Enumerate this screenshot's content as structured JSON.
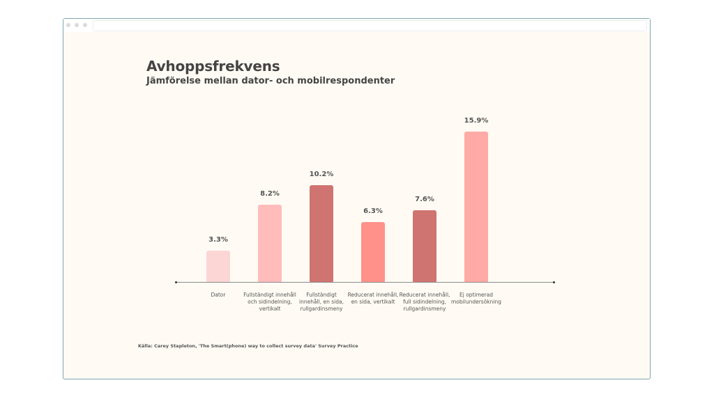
{
  "window": {
    "titlebar_dots": [
      "close",
      "minimize",
      "maximize"
    ],
    "address_bar": ""
  },
  "chart": {
    "title": "Avhoppsfrekvens",
    "subtitle": "Jämförelse mellan dator- och mobilrespondenter",
    "source": "Källa: Carey Stapleton, 'The Smart(phone) way to collect survey data' Survey Practice",
    "bars": [
      {
        "label": "Dator",
        "value_label": "3.3%",
        "value": 3.3,
        "color": "#fbd6d5"
      },
      {
        "label": "Fullständigt innehåll och sidindelning, vertikalt",
        "value_label": "8.2%",
        "value": 8.2,
        "color": "#ffbcbb"
      },
      {
        "label": "Fullständigt innehåll, en sida, rullgardinsmeny",
        "value_label": "10.2%",
        "value": 10.2,
        "color": "#cf7471"
      },
      {
        "label": "Reducerat innehåll, en sida, vertikalt",
        "value_label": "6.3%",
        "value": 6.3,
        "color": "#ff918b"
      },
      {
        "label": "Reducerat innehåll, full sidindelning, rullgardinsmeny",
        "value_label": "7.6%",
        "value": 7.6,
        "color": "#cf7471"
      },
      {
        "label": "Ej optimerad mobilundersökning",
        "value_label": "15.9%",
        "value": 15.9,
        "color": "#ffaaa6"
      }
    ]
  },
  "chart_data": {
    "type": "bar",
    "title": "Avhoppsfrekvens",
    "subtitle": "Jämförelse mellan dator- och mobilrespondenter",
    "categories": [
      "Dator",
      "Fullständigt innehåll och sidindelning, vertikalt",
      "Fullständigt innehåll, en sida, rullgardinsmeny",
      "Reducerat innehåll, en sida, vertikalt",
      "Reducerat innehåll, full sidindelning, rullgardinsmeny",
      "Ej optimerad mobilundersökning"
    ],
    "values": [
      3.3,
      8.2,
      10.2,
      6.3,
      7.6,
      15.9
    ],
    "value_labels": [
      "3.3%",
      "8.2%",
      "10.2%",
      "6.3%",
      "7.6%",
      "15.9%"
    ],
    "xlabel": "",
    "ylabel": "",
    "ylim": [
      0,
      16
    ],
    "grid": false,
    "legend": null,
    "annotations": [
      "Källa: Carey Stapleton, 'The Smart(phone) way to collect survey data' Survey Practice"
    ]
  }
}
